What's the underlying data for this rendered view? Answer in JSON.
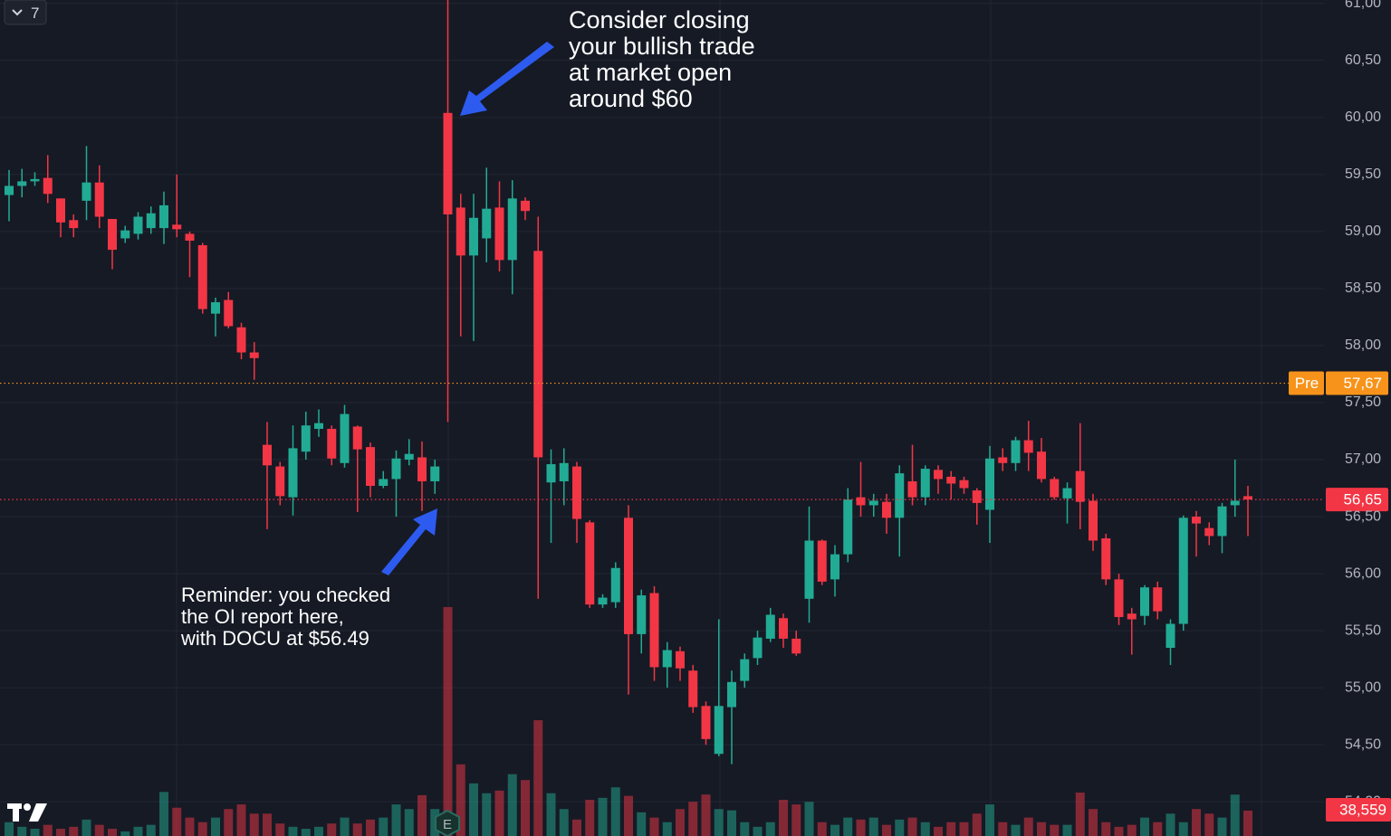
{
  "chart_data": {
    "type": "candlestick",
    "interval": "7",
    "up_color": "#22ab94",
    "down_color": "#f23645",
    "open": [
      59.32,
      59.4,
      59.44,
      59.47,
      59.29,
      59.1,
      59.27,
      59.43,
      59.11,
      58.94,
      58.98,
      59.03,
      59.03,
      59.06,
      58.98,
      58.88,
      58.28,
      58.4,
      58.16,
      57.94,
      57.13,
      56.94,
      56.67,
      57.07,
      57.27,
      57.27,
      56.97,
      57.29,
      57.11,
      56.77,
      56.83,
      57.0,
      57.02,
      56.81,
      60.04,
      59.21,
      58.79,
      58.94,
      59.21,
      58.75,
      59.27,
      58.83,
      56.8,
      56.81,
      56.94,
      56.45,
      55.73,
      55.75,
      56.49,
      55.47,
      55.83,
      55.18,
      55.32,
      55.15,
      54.84,
      54.42,
      54.83,
      55.06,
      55.26,
      55.43,
      55.61,
      55.43,
      55.78,
      56.29,
      55.95,
      56.17,
      56.67,
      56.6,
      56.63,
      56.49,
      56.81,
      56.67,
      56.91,
      56.85,
      56.82,
      56.73,
      56.56,
      57.02,
      56.97,
      57.17,
      57.07,
      56.83,
      56.66,
      56.9,
      56.64,
      56.31,
      55.95,
      55.65,
      55.63,
      55.88,
      55.35,
      55.56,
      56.5,
      56.4,
      56.33,
      56.6,
      56.68
    ],
    "high": [
      59.54,
      59.55,
      59.52,
      59.67,
      59.29,
      59.15,
      59.75,
      59.58,
      59.11,
      59.05,
      59.17,
      59.22,
      59.35,
      59.5,
      59.0,
      58.9,
      58.42,
      58.47,
      58.2,
      58.03,
      57.33,
      56.98,
      57.3,
      57.42,
      57.44,
      57.3,
      57.48,
      57.3,
      57.15,
      56.9,
      57.08,
      57.18,
      57.16,
      57.0,
      61.03,
      59.33,
      59.33,
      59.56,
      59.44,
      59.45,
      59.3,
      59.13,
      57.09,
      57.1,
      56.98,
      56.47,
      55.82,
      56.1,
      56.6,
      55.86,
      55.89,
      55.4,
      55.36,
      55.2,
      54.88,
      55.6,
      55.15,
      55.3,
      55.5,
      55.7,
      55.65,
      55.5,
      56.59,
      56.3,
      56.25,
      56.75,
      56.98,
      56.7,
      56.7,
      56.95,
      57.13,
      56.95,
      56.95,
      56.9,
      56.85,
      56.75,
      57.12,
      57.1,
      57.2,
      57.34,
      57.19,
      56.85,
      56.8,
      57.32,
      56.7,
      56.35,
      56.0,
      55.7,
      55.9,
      55.93,
      55.6,
      56.51,
      56.55,
      56.45,
      56.62,
      57.0,
      56.77
    ],
    "low": [
      59.09,
      59.3,
      59.4,
      59.25,
      58.95,
      58.95,
      59.1,
      59.03,
      58.67,
      58.9,
      58.93,
      58.98,
      58.89,
      58.95,
      58.6,
      58.28,
      58.08,
      58.15,
      57.88,
      57.7,
      56.39,
      56.6,
      56.51,
      57.0,
      57.2,
      56.95,
      56.93,
      56.54,
      56.67,
      56.75,
      56.5,
      56.95,
      56.55,
      56.7,
      57.33,
      58.08,
      58.04,
      58.73,
      58.65,
      58.45,
      59.1,
      55.78,
      56.27,
      56.6,
      56.27,
      55.7,
      55.7,
      55.7,
      54.94,
      55.3,
      55.06,
      55.0,
      55.06,
      54.78,
      54.5,
      54.4,
      54.33,
      55.0,
      55.2,
      55.4,
      55.35,
      55.28,
      55.57,
      55.9,
      55.8,
      56.1,
      56.5,
      56.5,
      56.35,
      56.15,
      56.6,
      56.6,
      56.7,
      56.65,
      56.7,
      56.43,
      56.27,
      56.9,
      56.9,
      56.9,
      56.8,
      56.65,
      56.44,
      56.39,
      56.2,
      55.9,
      55.55,
      55.29,
      55.55,
      55.6,
      55.2,
      55.5,
      56.15,
      56.25,
      56.18,
      56.5,
      56.33
    ],
    "close": [
      59.4,
      59.44,
      59.46,
      59.33,
      59.08,
      59.03,
      59.43,
      59.13,
      58.84,
      59.01,
      59.13,
      59.16,
      59.23,
      59.02,
      58.92,
      58.32,
      58.38,
      58.17,
      57.94,
      57.89,
      56.95,
      56.68,
      57.1,
      57.3,
      57.32,
      57.01,
      57.4,
      57.09,
      56.77,
      56.83,
      57.01,
      57.05,
      56.81,
      56.94,
      59.15,
      58.79,
      59.12,
      59.2,
      58.75,
      59.29,
      59.18,
      57.02,
      56.96,
      56.97,
      56.48,
      55.73,
      55.79,
      56.05,
      55.47,
      55.81,
      55.18,
      55.33,
      55.17,
      54.83,
      54.55,
      54.84,
      55.05,
      55.25,
      55.44,
      55.64,
      55.43,
      55.3,
      56.29,
      55.93,
      56.17,
      56.65,
      56.6,
      56.64,
      56.49,
      56.88,
      56.67,
      56.92,
      56.83,
      56.79,
      56.75,
      56.62,
      57.01,
      56.97,
      57.17,
      57.06,
      56.83,
      56.67,
      56.75,
      56.63,
      56.29,
      55.95,
      55.62,
      55.6,
      55.88,
      55.67,
      55.56,
      56.49,
      56.44,
      56.33,
      56.59,
      56.64,
      56.65
    ],
    "volume": [
      21000,
      14000,
      11000,
      17000,
      11000,
      14000,
      25000,
      17000,
      11000,
      7000,
      14000,
      17000,
      67000,
      43000,
      28000,
      21000,
      28000,
      41000,
      48000,
      34000,
      34000,
      19000,
      14000,
      11000,
      14000,
      19000,
      28000,
      19000,
      25000,
      28000,
      48000,
      41000,
      62000,
      41000,
      348000,
      109000,
      80000,
      65000,
      69000,
      94000,
      85000,
      176000,
      65000,
      41000,
      25000,
      55000,
      58000,
      74000,
      61000,
      36000,
      28000,
      21000,
      41000,
      52000,
      63000,
      41000,
      39000,
      21000,
      14000,
      21000,
      55000,
      48000,
      52000,
      21000,
      17000,
      28000,
      25000,
      28000,
      17000,
      25000,
      28000,
      21000,
      14000,
      21000,
      21000,
      34000,
      48000,
      21000,
      17000,
      28000,
      21000,
      17000,
      17000,
      66000,
      41000,
      21000,
      14000,
      17000,
      28000,
      21000,
      34000,
      21000,
      41000,
      34000,
      28000,
      63000,
      38559
    ],
    "volume_value_label": "38,559",
    "ylim": [
      53.7,
      61.03
    ],
    "yticks": [
      {
        "value": 54,
        "label": "54,00"
      },
      {
        "value": 54.5,
        "label": "54,50"
      },
      {
        "value": 55,
        "label": "55,00"
      },
      {
        "value": 55.5,
        "label": "55,50"
      },
      {
        "value": 56,
        "label": "56,00"
      },
      {
        "value": 56.5,
        "label": "56,50"
      },
      {
        "value": 57,
        "label": "57,00"
      },
      {
        "value": 57.5,
        "label": "57,50"
      },
      {
        "value": 58,
        "label": "58,00"
      },
      {
        "value": 58.5,
        "label": "58,50"
      },
      {
        "value": 59,
        "label": "59,00"
      },
      {
        "value": 59.5,
        "label": "59,50"
      },
      {
        "value": 60,
        "label": "60,00"
      },
      {
        "value": 60.5,
        "label": "60,50"
      },
      {
        "value": 61,
        "label": "61,00"
      }
    ],
    "grid": true,
    "price_lines": [
      {
        "tag": "Pre",
        "value": 57.67,
        "value_label": "57,67",
        "color": "#f7931a"
      },
      {
        "value": 56.65,
        "value_label": "56,65",
        "color": "#f23645"
      }
    ],
    "earnings_marker": "E",
    "annotations": [
      {
        "lines": [
          "Consider closing",
          "your bullish trade",
          "at market open",
          "around $60"
        ]
      },
      {
        "lines": [
          "Reminder: you checked",
          "the OI report here,",
          "with DOCU at $56.49"
        ]
      }
    ]
  }
}
